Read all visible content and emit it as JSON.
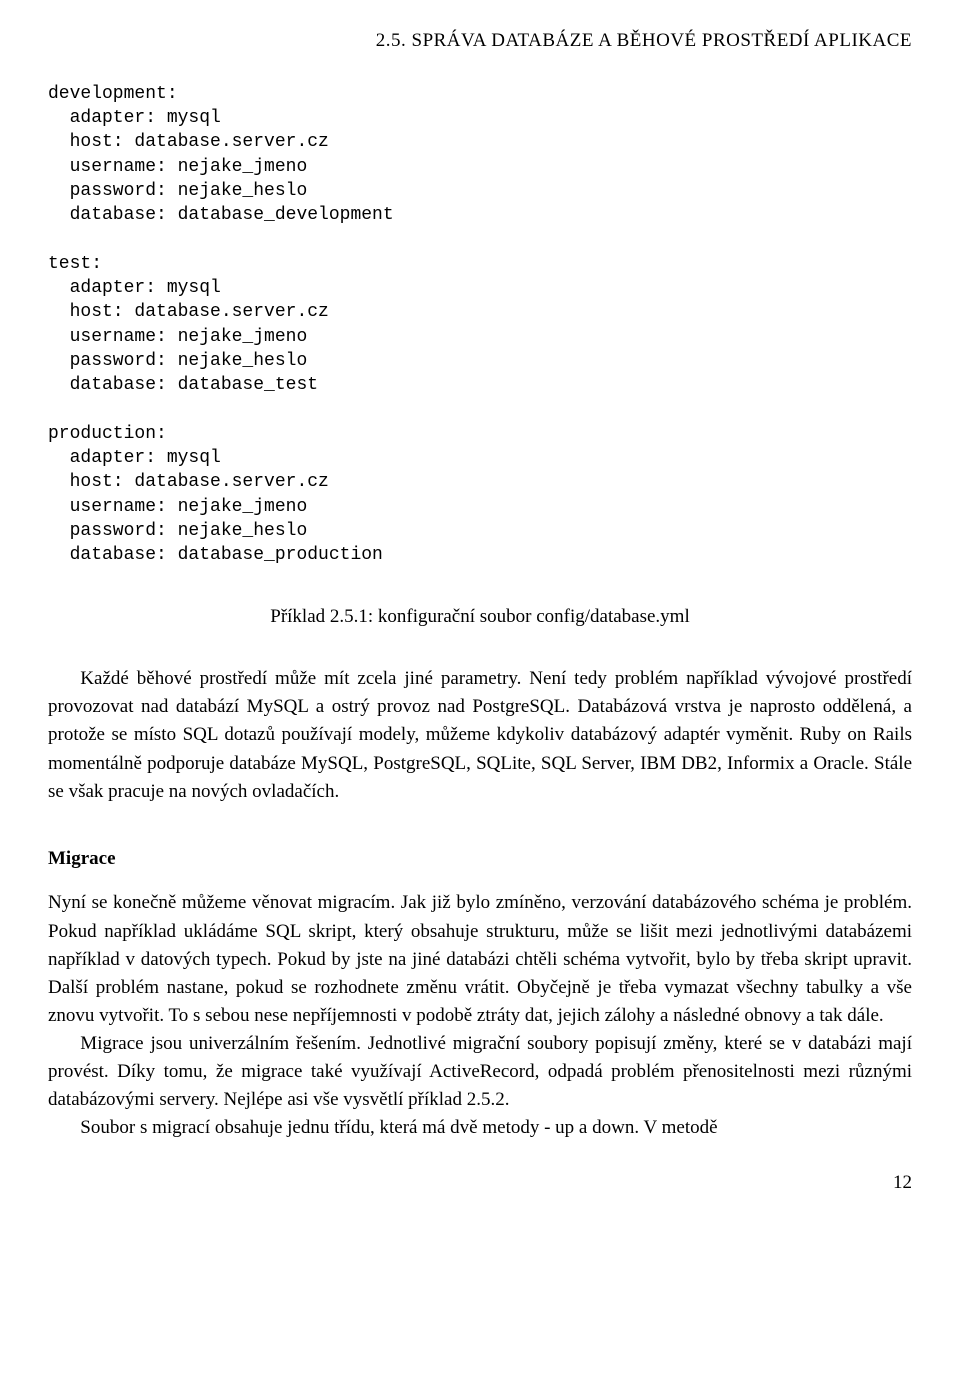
{
  "header": "2.5. SPRÁVA DATABÁZE A BĚHOVÉ PROSTŘEDÍ APLIKACE",
  "code": "development:\n  adapter: mysql\n  host: database.server.cz\n  username: nejake_jmeno\n  password: nejake_heslo\n  database: database_development\n\ntest:\n  adapter: mysql\n  host: database.server.cz\n  username: nejake_jmeno\n  password: nejake_heslo\n  database: database_test\n\nproduction:\n  adapter: mysql\n  host: database.server.cz\n  username: nejake_jmeno\n  password: nejake_heslo\n  database: database_production",
  "caption": "Příklad 2.5.1: konfigurační soubor config/database.yml",
  "paragraph1": "Každé běhové prostředí může mít zcela jiné parametry. Není tedy problém například vývojové prostředí provozovat nad databází MySQL a ostrý provoz nad PostgreSQL. Databázová vrstva je naprosto oddělená, a protože se místo SQL dotazů používají modely, můžeme kdykoliv databázový adaptér vyměnit. Ruby on Rails momentálně podporuje databáze MySQL, PostgreSQL, SQLite, SQL Server, IBM DB2, Informix a Oracle. Stále se však pracuje na nových ovladačích.",
  "subsection": "Migrace",
  "paragraph2": "Nyní se konečně můžeme věnovat migracím. Jak již bylo zmíněno, verzování databázového schéma je problém. Pokud například ukládáme SQL skript, který obsahuje strukturu, může se lišit mezi jednotlivými databázemi například v datových typech. Pokud by jste na jiné databázi chtěli schéma vytvořit, bylo by třeba skript upravit. Další problém nastane, pokud se rozhodnete změnu vrátit. Obyčejně je třeba vymazat všechny tabulky a vše znovu vytvořit. To s sebou nese nepříjemnosti v podobě ztráty dat, jejich zálohy a následné obnovy a tak dále.",
  "paragraph3": "Migrace jsou univerzálním řešením. Jednotlivé migrační soubory popisují změny, které se v databázi mají provést. Díky tomu, že migrace také využívají ActiveRecord, odpadá problém přenositelnosti mezi různými databázovými servery. Nejlépe asi vše vysvětlí příklad 2.5.2.",
  "paragraph4": "Soubor s migrací obsahuje jednu třídu, která má dvě metody - up a down. V metodě",
  "page_number": "12",
  "colors": {
    "text": "#000000",
    "background": "#ffffff"
  },
  "typography": {
    "body_font": "Palatino/Book Antiqua serif",
    "code_font": "Courier monospace",
    "body_size_pt": 14,
    "header_size_pt": 14,
    "code_size_pt": 13
  }
}
